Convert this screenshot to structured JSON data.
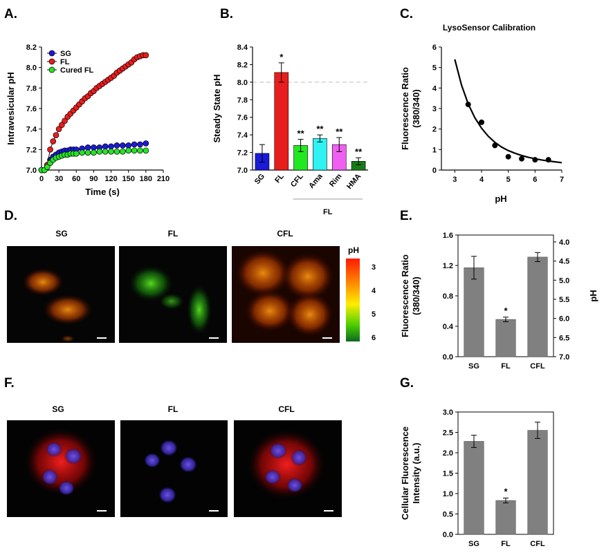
{
  "panels": {
    "A": "A.",
    "B": "B.",
    "C": "C.",
    "D": "D.",
    "E": "E.",
    "F": "F.",
    "G": "G."
  },
  "colors": {
    "sg": "#1a1ad8",
    "fl": "#e81d1d",
    "cured_fl": "#27e327",
    "cfl": "#22e822",
    "ama": "#2ff2f2",
    "rim": "#f060f0",
    "hma": "#167d16",
    "gray_bar": "#808080"
  },
  "images_D": {
    "labels": [
      "SG",
      "FL",
      "CFL"
    ],
    "colorbar_title": "pH",
    "colorbar_ticks": [
      "3",
      "4",
      "5",
      "6"
    ]
  },
  "images_F": {
    "labels": [
      "SG",
      "FL",
      "CFL"
    ]
  },
  "chart_data": [
    {
      "id": "A",
      "type": "scatter",
      "ylabel": "Intravesicular pH",
      "xlabel": "Time (s)",
      "xlim": [
        0,
        210
      ],
      "ylim": [
        7.0,
        8.2
      ],
      "xticks": [
        "0",
        "30",
        "60",
        "90",
        "120",
        "150",
        "180",
        "210"
      ],
      "yticks": [
        "7.0",
        "7.2",
        "7.4",
        "7.6",
        "7.8",
        "8.0",
        "8.2"
      ],
      "legend": "top-left",
      "series": [
        {
          "name": "SG",
          "color": "#1a1ad8",
          "x": [
            0,
            5,
            10,
            15,
            20,
            25,
            30,
            35,
            40,
            45,
            50,
            55,
            60,
            70,
            80,
            90,
            100,
            110,
            120,
            130,
            140,
            150,
            160,
            170,
            180
          ],
          "y": [
            7.0,
            7.0,
            7.05,
            7.1,
            7.13,
            7.15,
            7.17,
            7.18,
            7.19,
            7.19,
            7.2,
            7.2,
            7.2,
            7.21,
            7.22,
            7.22,
            7.22,
            7.23,
            7.23,
            7.24,
            7.24,
            7.24,
            7.25,
            7.25,
            7.26
          ]
        },
        {
          "name": "FL",
          "color": "#e81d1d",
          "x": [
            0,
            5,
            10,
            15,
            20,
            25,
            30,
            35,
            40,
            45,
            50,
            55,
            60,
            65,
            70,
            75,
            80,
            85,
            90,
            95,
            100,
            105,
            110,
            115,
            120,
            125,
            130,
            135,
            140,
            145,
            150,
            155,
            160,
            165,
            170,
            175,
            180
          ],
          "y": [
            7.0,
            7.0,
            7.05,
            7.2,
            7.28,
            7.34,
            7.4,
            7.44,
            7.48,
            7.52,
            7.55,
            7.58,
            7.61,
            7.64,
            7.67,
            7.7,
            7.72,
            7.75,
            7.77,
            7.8,
            7.82,
            7.84,
            7.86,
            7.88,
            7.9,
            7.92,
            7.95,
            7.97,
            7.99,
            8.01,
            8.03,
            8.05,
            8.08,
            8.1,
            8.11,
            8.12,
            8.12
          ]
        },
        {
          "name": "Cured FL",
          "color": "#27e327",
          "x": [
            0,
            5,
            10,
            15,
            20,
            25,
            30,
            35,
            40,
            45,
            50,
            55,
            60,
            70,
            80,
            90,
            100,
            110,
            120,
            130,
            140,
            150,
            160,
            170,
            180
          ],
          "y": [
            7.0,
            7.0,
            7.03,
            7.07,
            7.1,
            7.12,
            7.13,
            7.14,
            7.15,
            7.15,
            7.16,
            7.16,
            7.16,
            7.17,
            7.17,
            7.17,
            7.18,
            7.18,
            7.18,
            7.18,
            7.18,
            7.19,
            7.19,
            7.19,
            7.19
          ]
        }
      ]
    },
    {
      "id": "B",
      "type": "bar",
      "ylabel": "Steady State pH",
      "categories": [
        "SG",
        "FL",
        "CFL",
        "Ama",
        "Rim",
        "HMA"
      ],
      "values": [
        7.19,
        8.11,
        7.28,
        7.36,
        7.29,
        7.1
      ],
      "errors": [
        0.1,
        0.11,
        0.07,
        0.04,
        0.08,
        0.04
      ],
      "significance": [
        "",
        "*",
        "**",
        "**",
        "**",
        "**"
      ],
      "reference_line": 8.0,
      "group_label": "FL",
      "ylim": [
        7.0,
        8.4
      ],
      "yticks": [
        "7.0",
        "7.2",
        "7.4",
        "7.6",
        "7.8",
        "8.0",
        "8.2",
        "8.4"
      ]
    },
    {
      "id": "C",
      "type": "scatter",
      "title": "LysoSensor Calibration",
      "xlabel": "pH",
      "ylabel": "Fluorescence Ratio",
      "ylabel2": "(380/340)",
      "xlim": [
        2.5,
        7
      ],
      "ylim": [
        0,
        6
      ],
      "xticks": [
        "3",
        "4",
        "5",
        "6",
        "7"
      ],
      "yticks": [
        "0",
        "1",
        "2",
        "3",
        "4",
        "5",
        "6"
      ],
      "points": {
        "x": [
          3.5,
          4.0,
          4.5,
          5.0,
          5.5,
          6.0,
          6.5
        ],
        "y": [
          3.2,
          2.33,
          1.2,
          0.65,
          0.55,
          0.5,
          0.5
        ]
      },
      "fit_curve": {
        "x": [
          3.0,
          3.25,
          3.5,
          3.75,
          4.0,
          4.25,
          4.5,
          4.75,
          5.0,
          5.25,
          5.5,
          5.75,
          6.0,
          6.25,
          6.5,
          6.75,
          7.0
        ],
        "y": [
          5.4,
          4.15,
          3.23,
          2.55,
          2.04,
          1.65,
          1.35,
          1.12,
          0.95,
          0.82,
          0.71,
          0.62,
          0.55,
          0.49,
          0.44,
          0.4,
          0.36
        ]
      }
    },
    {
      "id": "E",
      "type": "bar",
      "ylabel": "Fluorescence Ratio",
      "ylabel2": "(380/340)",
      "right_axis_label": "pH",
      "categories": [
        "SG",
        "FL",
        "CFL"
      ],
      "values": [
        1.17,
        0.49,
        1.31
      ],
      "errors": [
        0.15,
        0.03,
        0.06
      ],
      "significance": [
        "",
        "*",
        ""
      ],
      "ylim": [
        0,
        1.6
      ],
      "yticks": [
        "0.0",
        "0.4",
        "0.8",
        "1.2",
        "1.6"
      ],
      "right_ticks": [
        "4.0",
        "4.5",
        "5.0",
        "5.5",
        "6.0",
        "6.5",
        "7.0"
      ]
    },
    {
      "id": "G",
      "type": "bar",
      "ylabel": "Cellular Fluorescence",
      "ylabel2": "Intensity (a.u.)",
      "categories": [
        "SG",
        "FL",
        "CFL"
      ],
      "values": [
        2.28,
        0.83,
        2.55
      ],
      "errors": [
        0.15,
        0.06,
        0.2
      ],
      "significance": [
        "",
        "*",
        ""
      ],
      "ylim": [
        0,
        3.0
      ],
      "yticks": [
        "0.0",
        "0.5",
        "1.0",
        "1.5",
        "2.0",
        "2.5",
        "3.0"
      ]
    }
  ]
}
